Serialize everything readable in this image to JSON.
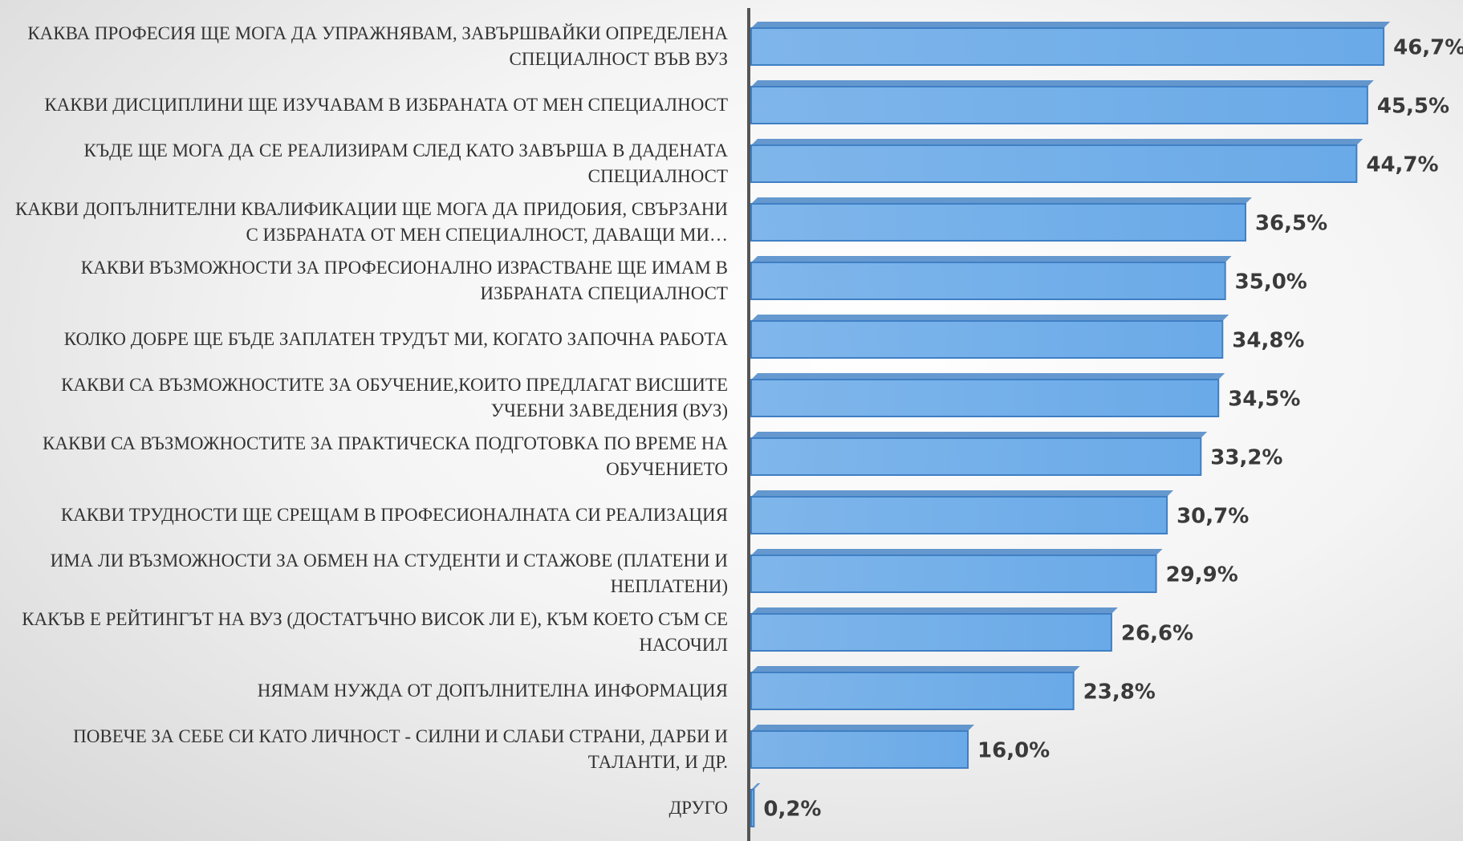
{
  "chart_data": {
    "type": "bar",
    "orientation": "horizontal",
    "categories": [
      "Каква професия ще мога да упражнявам, завършвайки определена специалност във ВУЗ",
      "Какви дисциплини ще изучавам в избраната от мен специалност",
      "Къде ще мога да се реализирам след като завърша в дадената специалност",
      "Какви допълнителни квалификации ще мога да придобия, свързани с избраната от мен специалност, даващи ми…",
      "Какви възможности за професионално израстване ще имам в избраната специалност",
      "Колко добре ще бъде заплатен трудът ми, когато започна работа",
      "Какви са възможностите за обучение,които предлагат висшите учебни заведения (ВУЗ)",
      "Какви са възможностите за практическа подготовка по време на обучението",
      "Какви трудности ще срещам в професионалната си реализация",
      "Има ли възможности за обмен на студенти и стажове (платени и неплатени)",
      "Какъв е рейтингът на ВУЗ (достатъчно висок ли е), към което съм се насочил",
      "Нямам нужда от допълнителна информация",
      "Повече за себе си като личност - силни и слаби страни, дарби и таланти, и др.",
      "Друго"
    ],
    "values": [
      46.7,
      45.5,
      44.7,
      36.5,
      35.0,
      34.8,
      34.5,
      33.2,
      30.7,
      29.9,
      26.6,
      23.8,
      16.0,
      0.2
    ],
    "value_labels": [
      "46,7%",
      "45,5%",
      "44,7%",
      "36,5%",
      "35,0%",
      "34,8%",
      "34,5%",
      "33,2%",
      "30,7%",
      "29,9%",
      "26,6%",
      "23,8%",
      "16,0%",
      "0,2%"
    ],
    "color": "#6aaae8",
    "xlim": [
      0,
      52.5
    ]
  }
}
